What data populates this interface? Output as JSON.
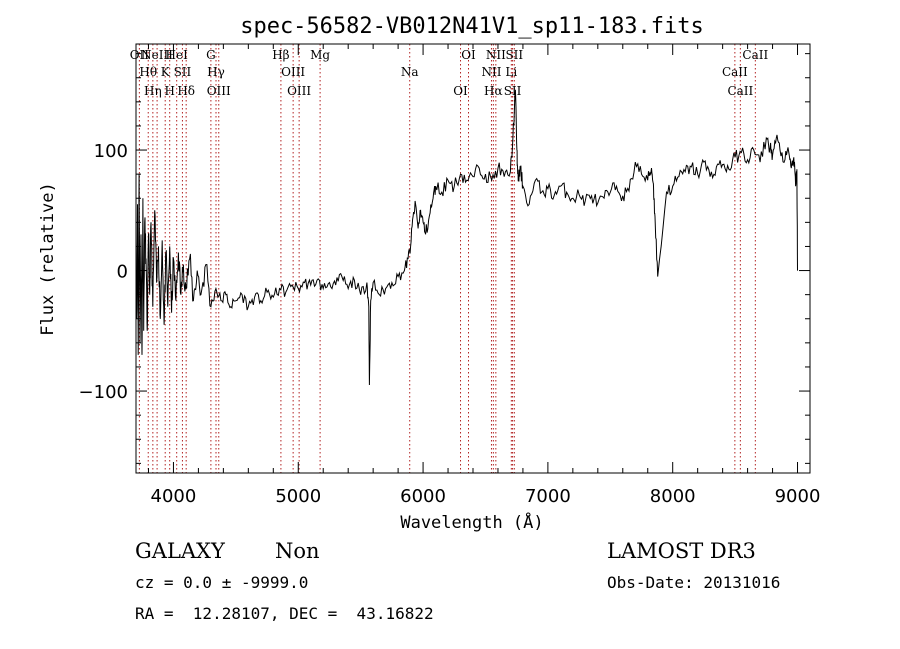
{
  "chart_data": {
    "type": "line",
    "title": "spec-56582-VB012N41V1_sp11-183.fits",
    "xlabel": "Wavelength (Å)",
    "ylabel": "Flux (relative)",
    "xlim": [
      3700,
      9100
    ],
    "ylim": [
      -168,
      188
    ],
    "xticks": [
      4000,
      5000,
      6000,
      7000,
      8000,
      9000
    ],
    "yticks": [
      -100,
      0,
      100
    ],
    "grid": false,
    "line_color": "#000000",
    "marker_color": "#b22222",
    "spectrum": {
      "x": [
        3705,
        3712,
        3718,
        3725,
        3732,
        3740,
        3748,
        3755,
        3762,
        3770,
        3780,
        3790,
        3800,
        3810,
        3820,
        3835,
        3850,
        3865,
        3880,
        3895,
        3910,
        3925,
        3940,
        3955,
        3970,
        3985,
        4000,
        4020,
        4040,
        4060,
        4080,
        4100,
        4130,
        4160,
        4190,
        4220,
        4260,
        4300,
        4340,
        4380,
        4420,
        4460,
        4500,
        4550,
        4600,
        4650,
        4700,
        4750,
        4800,
        4850,
        4900,
        4950,
        5000,
        5050,
        5100,
        5150,
        5200,
        5250,
        5300,
        5350,
        5400,
        5450,
        5500,
        5550,
        5565,
        5570,
        5580,
        5600,
        5650,
        5700,
        5750,
        5800,
        5850,
        5880,
        5900,
        5920,
        5940,
        5960,
        5980,
        6000,
        6020,
        6050,
        6080,
        6100,
        6150,
        6200,
        6250,
        6300,
        6350,
        6400,
        6450,
        6500,
        6550,
        6600,
        6650,
        6700,
        6720,
        6740,
        6752,
        6758,
        6765,
        6780,
        6800,
        6850,
        6900,
        6950,
        7000,
        7050,
        7100,
        7150,
        7200,
        7250,
        7300,
        7350,
        7400,
        7450,
        7500,
        7550,
        7600,
        7650,
        7700,
        7750,
        7800,
        7830,
        7845,
        7850,
        7860,
        7880,
        7950,
        8000,
        8050,
        8100,
        8150,
        8200,
        8250,
        8300,
        8350,
        8400,
        8450,
        8500,
        8550,
        8600,
        8650,
        8700,
        8750,
        8780,
        8800,
        8830,
        8860,
        8900,
        8930,
        8950,
        8970,
        8985,
        8995,
        9000
      ],
      "y": [
        -40,
        55,
        -70,
        80,
        -60,
        30,
        -70,
        60,
        -50,
        40,
        10,
        -50,
        30,
        -20,
        40,
        -30,
        50,
        -10,
        20,
        -40,
        25,
        -45,
        15,
        -30,
        20,
        -35,
        10,
        -25,
        15,
        -20,
        5,
        -15,
        10,
        -25,
        0,
        -20,
        5,
        -30,
        -15,
        -25,
        -20,
        -30,
        -25,
        -20,
        -30,
        -22,
        -25,
        -18,
        -22,
        -15,
        -18,
        -12,
        -15,
        -10,
        -12,
        -8,
        -15,
        -10,
        -12,
        -5,
        -15,
        -8,
        -20,
        -10,
        -30,
        -95,
        -25,
        -10,
        -20,
        -15,
        -10,
        -5,
        0,
        10,
        20,
        45,
        55,
        35,
        50,
        40,
        30,
        45,
        60,
        70,
        65,
        75,
        70,
        80,
        75,
        78,
        85,
        80,
        75,
        85,
        78,
        82,
        110,
        150,
        100,
        80,
        75,
        85,
        70,
        55,
        75,
        65,
        68,
        62,
        70,
        65,
        60,
        63,
        58,
        62,
        56,
        60,
        65,
        70,
        62,
        66,
        90,
        80,
        75,
        85,
        72,
        60,
        40,
        -5,
        65,
        70,
        78,
        82,
        86,
        80,
        90,
        78,
        86,
        88,
        84,
        94,
        98,
        92,
        100,
        90,
        110,
        102,
        96,
        110,
        100,
        92,
        98,
        85,
        94,
        70,
        84,
        0
      ]
    },
    "line_markers": [
      {
        "wavelength": 3727,
        "label": "OII"
      },
      {
        "wavelength": 3798,
        "label": "Hθ"
      },
      {
        "wavelength": 3835,
        "label": "Hη"
      },
      {
        "wavelength": 3869,
        "label": "NeIII"
      },
      {
        "wavelength": 3934,
        "label": "K"
      },
      {
        "wavelength": 3970,
        "label": "H"
      },
      {
        "wavelength": 4026,
        "label": "HeI"
      },
      {
        "wavelength": 4072,
        "label": "SII"
      },
      {
        "wavelength": 4102,
        "label": "Hδ"
      },
      {
        "wavelength": 4300,
        "label": "G"
      },
      {
        "wavelength": 4341,
        "label": "Hγ"
      },
      {
        "wavelength": 4363,
        "label": "OIII"
      },
      {
        "wavelength": 4861,
        "label": "Hβ"
      },
      {
        "wavelength": 4959,
        "label": "OIII"
      },
      {
        "wavelength": 5007,
        "label": "OIII"
      },
      {
        "wavelength": 5175,
        "label": "Mg"
      },
      {
        "wavelength": 5893,
        "label": "Na"
      },
      {
        "wavelength": 6300,
        "label": "OI"
      },
      {
        "wavelength": 6364,
        "label": "OI"
      },
      {
        "wavelength": 6548,
        "label": "NII"
      },
      {
        "wavelength": 6563,
        "label": "Hα"
      },
      {
        "wavelength": 6583,
        "label": "NII"
      },
      {
        "wavelength": 6707,
        "label": "Li"
      },
      {
        "wavelength": 6717,
        "label": "SII"
      },
      {
        "wavelength": 6731,
        "label": "SII"
      },
      {
        "wavelength": 8498,
        "label": "CaII"
      },
      {
        "wavelength": 8542,
        "label": "CaII"
      },
      {
        "wavelength": 8662,
        "label": "CaII"
      }
    ]
  },
  "info": {
    "class_label": "GALAXY",
    "subclass_label": "Non",
    "redshift_line": "cz = 0.0 ± -9999.0",
    "coords_line": "RA =  12.28107, DEC =  43.16822",
    "survey_label": "LAMOST DR3",
    "obsdate_line": "Obs-Date: 20131016"
  }
}
